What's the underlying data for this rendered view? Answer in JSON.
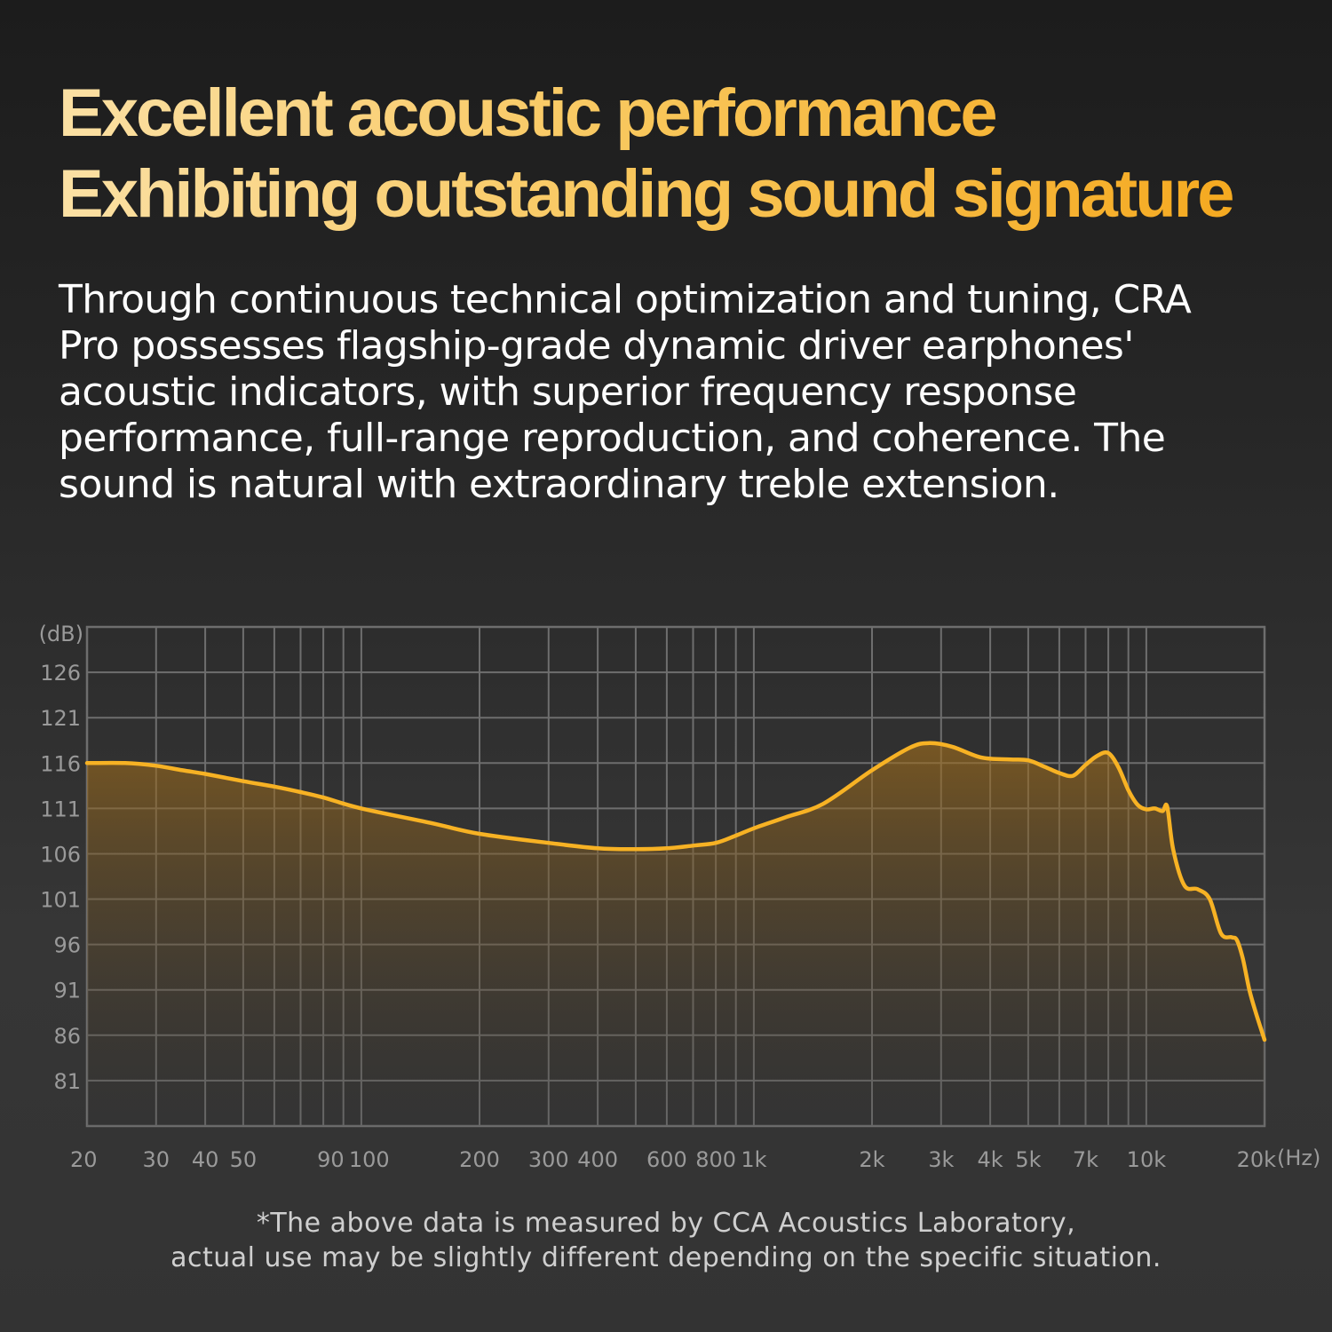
{
  "headline": {
    "line1": "Excellent acoustic performance",
    "line2": "Exhibiting outstanding sound signature"
  },
  "description": "Through continuous technical optimization and tuning, CRA Pro possesses flagship-grade dynamic driver earphones' acoustic indicators, with superior frequency response performance, full-range reproduction, and coherence. The sound is natural with extraordinary treble extension.",
  "footnote": {
    "line1": "*The above data is measured by CCA Acoustics Laboratory,",
    "line2": "actual use may be slightly different depending on the specific situation."
  },
  "colors": {
    "accent": "#f7b224",
    "grid": "#6e6e6e",
    "tick_text": "#9a9a9a"
  },
  "chart_data": {
    "type": "area",
    "title": "",
    "xlabel": "(Hz)",
    "ylabel": "(dB)",
    "x_scale": "log",
    "xlim": [
      20,
      20000
    ],
    "ylim": [
      76,
      131
    ],
    "grid": true,
    "x_ticks": [
      {
        "value": 20,
        "label": "20"
      },
      {
        "value": 30,
        "label": "30"
      },
      {
        "value": 40,
        "label": "40"
      },
      {
        "value": 50,
        "label": "50"
      },
      {
        "value": 90,
        "label": "90"
      },
      {
        "value": 100,
        "label": "100"
      },
      {
        "value": 200,
        "label": "200"
      },
      {
        "value": 300,
        "label": "300"
      },
      {
        "value": 400,
        "label": "400"
      },
      {
        "value": 600,
        "label": "600"
      },
      {
        "value": 800,
        "label": "800"
      },
      {
        "value": 1000,
        "label": "1k"
      },
      {
        "value": 2000,
        "label": "2k"
      },
      {
        "value": 3000,
        "label": "3k"
      },
      {
        "value": 4000,
        "label": "4k"
      },
      {
        "value": 5000,
        "label": "5k"
      },
      {
        "value": 7000,
        "label": "7k"
      },
      {
        "value": 10000,
        "label": "10k"
      },
      {
        "value": 20000,
        "label": "20k"
      }
    ],
    "x_grid": [
      20,
      30,
      40,
      50,
      60,
      70,
      80,
      90,
      100,
      200,
      300,
      400,
      500,
      600,
      700,
      800,
      900,
      1000,
      2000,
      3000,
      4000,
      5000,
      6000,
      7000,
      8000,
      9000,
      10000,
      20000
    ],
    "y_ticks": [
      126,
      121,
      116,
      111,
      106,
      101,
      96,
      91,
      86,
      81
    ],
    "series": [
      {
        "values_x": [
          20,
          25,
          30,
          35,
          40,
          50,
          60,
          70,
          80,
          100,
          150,
          200,
          300,
          400,
          500,
          600,
          700,
          800,
          900,
          1000,
          1200,
          1500,
          2000,
          2500,
          2800,
          3200,
          3800,
          4500,
          5000,
          5500,
          6000,
          6500,
          7000,
          7500,
          8000,
          8500,
          9000,
          9500,
          10000,
          10500,
          11000,
          11300,
          11700,
          12500,
          13500,
          14500,
          15500,
          16500,
          17000,
          17600,
          18300,
          19000,
          20000
        ],
        "values_y": [
          116,
          116,
          115.7,
          115.2,
          114.8,
          114,
          113.4,
          112.8,
          112.2,
          111,
          109.4,
          108.2,
          107.2,
          106.6,
          106.5,
          106.6,
          106.9,
          107.2,
          108,
          108.8,
          110,
          111.5,
          115.2,
          117.7,
          118.2,
          117.8,
          116.6,
          116.4,
          116.3,
          115.6,
          114.9,
          114.6,
          115.8,
          116.8,
          117.1,
          115.5,
          113,
          111.4,
          110.9,
          111,
          110.7,
          111.2,
          106.5,
          102.5,
          102.1,
          101,
          97.2,
          96.8,
          96.5,
          94.5,
          91,
          88.5,
          85.5
        ]
      }
    ]
  }
}
